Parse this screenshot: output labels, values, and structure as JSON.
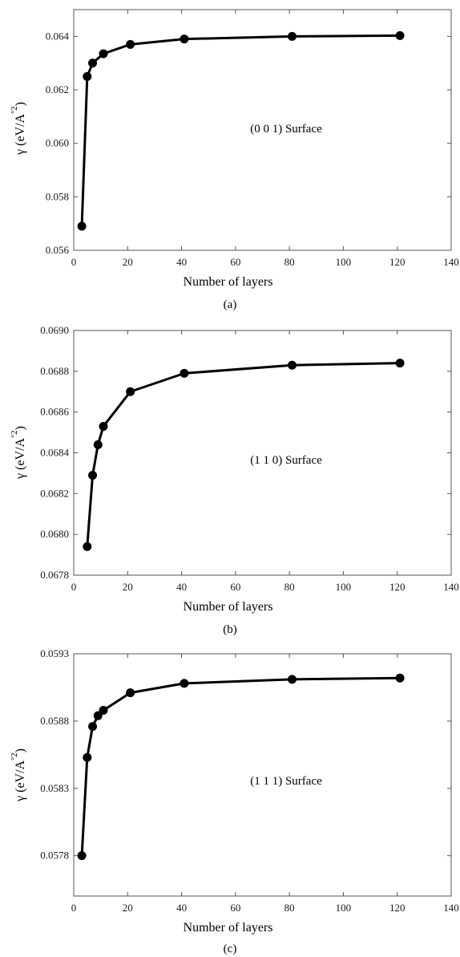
{
  "chart_data": [
    {
      "type": "line",
      "caption": "(a)",
      "annotation": "(0 0 1) Surface",
      "xlabel": "Number of layers",
      "ylabel_main": "γ (eV/A",
      "ylabel_sup": "2",
      "ylabel_ring": "°",
      "ylabel_close": ")",
      "xlim": [
        0,
        140
      ],
      "ylim": [
        0.056,
        0.065
      ],
      "xticks": [
        0,
        20,
        40,
        60,
        80,
        100,
        120,
        140
      ],
      "yticks": [
        0.056,
        0.058,
        0.06,
        0.062,
        0.064
      ],
      "ytick_labels": [
        "0.056",
        "0.058",
        "0.060",
        "0.062",
        "0.064"
      ],
      "x": [
        3,
        5,
        7,
        11,
        21,
        41,
        81,
        121
      ],
      "values": [
        0.0569,
        0.0625,
        0.063,
        0.06335,
        0.0637,
        0.0639,
        0.064,
        0.06403
      ]
    },
    {
      "type": "line",
      "caption": "(b)",
      "annotation": "(1 1 0) Surface",
      "xlabel": "Number of layers",
      "ylabel_main": "γ (eV/A",
      "ylabel_sup": "2",
      "ylabel_ring": "°",
      "ylabel_close": ")",
      "xlim": [
        0,
        140
      ],
      "ylim": [
        0.0678,
        0.069
      ],
      "xticks": [
        0,
        20,
        40,
        60,
        80,
        100,
        120,
        140
      ],
      "yticks": [
        0.0678,
        0.068,
        0.0682,
        0.0684,
        0.0686,
        0.0688,
        0.069
      ],
      "ytick_labels": [
        "0.0678",
        "0.0680",
        "0.0682",
        "0.0684",
        "0.0686",
        "0.0688",
        "0.0690"
      ],
      "x": [
        5,
        7,
        9,
        11,
        21,
        41,
        81,
        121
      ],
      "values": [
        0.06794,
        0.06829,
        0.06844,
        0.06853,
        0.0687,
        0.06879,
        0.06883,
        0.06884
      ]
    },
    {
      "type": "line",
      "caption": "(c)",
      "annotation": "(1 1 1) Surface",
      "xlabel": "Number of layers",
      "ylabel_main": "γ (eV/A",
      "ylabel_sup": "2",
      "ylabel_ring": "°",
      "ylabel_close": ")",
      "xlim": [
        0,
        140
      ],
      "ylim": [
        0.0575,
        0.0593
      ],
      "xticks": [
        0,
        20,
        40,
        60,
        80,
        100,
        120,
        140
      ],
      "yticks": [
        0.0578,
        0.0583,
        0.0588,
        0.0593
      ],
      "ytick_labels": [
        "0.0578",
        "0.0583",
        "0.0588",
        "0.0593"
      ],
      "x": [
        3,
        5,
        7,
        9,
        11,
        21,
        41,
        81,
        121
      ],
      "values": [
        0.0578,
        0.05853,
        0.05876,
        0.05884,
        0.05888,
        0.05901,
        0.05908,
        0.05911,
        0.05912
      ]
    }
  ]
}
